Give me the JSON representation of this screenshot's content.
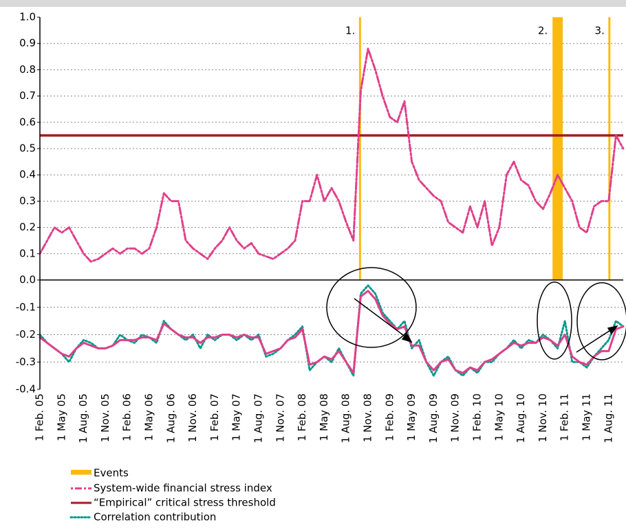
{
  "chart_data": [
    {
      "type": "line",
      "ylim": [
        0,
        1
      ],
      "yticks": [
        {
          "value": 0,
          "label": "0.0"
        },
        0.1,
        0.2,
        0.3,
        0.4,
        0.5,
        0.6,
        0.7,
        0.8,
        0.9,
        {
          "value": 1,
          "label": "1.0"
        }
      ],
      "grid": true,
      "events": {
        "name": "Events",
        "color": "#fdb913",
        "items": [
          {
            "label": "1.",
            "start": 43.9,
            "end": 43.9
          },
          {
            "label": "2.",
            "start": 70.3,
            "end": 71.7
          },
          {
            "label": "3.",
            "start": 78.1,
            "end": 78.1
          }
        ]
      },
      "threshold": {
        "name": "“Empirical” critical stress threshold",
        "value": 0.55,
        "color": "#a31d1d"
      },
      "series": [
        {
          "name": "System-wide financial stress index",
          "color": "#e0408a",
          "values": [
            0.1,
            0.15,
            0.2,
            0.18,
            0.2,
            0.15,
            0.1,
            0.07,
            0.08,
            0.1,
            0.12,
            0.1,
            0.12,
            0.12,
            0.1,
            0.12,
            0.2,
            0.33,
            0.3,
            0.3,
            0.15,
            0.12,
            0.1,
            0.08,
            0.12,
            0.15,
            0.2,
            0.15,
            0.12,
            0.14,
            0.1,
            0.09,
            0.08,
            0.1,
            0.12,
            0.15,
            0.3,
            0.3,
            0.4,
            0.3,
            0.35,
            0.3,
            0.22,
            0.15,
            0.72,
            0.88,
            0.8,
            0.7,
            0.62,
            0.6,
            0.68,
            0.45,
            0.38,
            0.35,
            0.32,
            0.3,
            0.22,
            0.2,
            0.18,
            0.28,
            0.2,
            0.3,
            0.13,
            0.2,
            0.4,
            0.45,
            0.38,
            0.36,
            0.3,
            0.27,
            0.33,
            0.4,
            0.35,
            0.3,
            0.2,
            0.18,
            0.28,
            0.3,
            0.3,
            0.55,
            0.5
          ]
        }
      ]
    },
    {
      "type": "line",
      "ylim": [
        -0.4,
        0
      ],
      "yticks": [
        -0.4,
        -0.3,
        -0.2,
        -0.1
      ],
      "grid": true,
      "categories": [
        "1 Feb. 05",
        null,
        null,
        "1 May 05",
        null,
        null,
        "1 Aug. 05",
        null,
        null,
        "1 Nov. 05",
        null,
        null,
        "1 Feb. 06",
        null,
        null,
        "1 May 06",
        null,
        null,
        "1 Aug. 06",
        null,
        null,
        "1 Nov. 06",
        null,
        null,
        "1 Feb. 07",
        null,
        null,
        "1 May 07",
        null,
        null,
        "1 Aug. 07",
        null,
        null,
        "1 Nov. 07",
        null,
        null,
        "1 Feb. 08",
        null,
        null,
        "1 May 08",
        null,
        null,
        "1 Aug. 08",
        null,
        null,
        "1 Nov. 08",
        null,
        null,
        "1 Feb. 09",
        null,
        null,
        "1 May 09",
        null,
        null,
        "1 Aug. 09",
        null,
        null,
        "1 Nov. 09",
        null,
        null,
        "1 Feb. 10",
        null,
        null,
        "1 May 10",
        null,
        null,
        "1 Aug. 10",
        null,
        null,
        "1 Nov. 10",
        null,
        null,
        "1 Feb. 11",
        null,
        null,
        "1 May 11",
        null,
        null,
        "1 Aug. 11",
        null,
        null
      ],
      "series": [
        {
          "name": "Correlation contribution",
          "color": "#00998a",
          "style": "dotted",
          "values": [
            -0.2,
            -0.23,
            -0.25,
            -0.27,
            -0.3,
            -0.25,
            -0.22,
            -0.23,
            -0.25,
            -0.25,
            -0.24,
            -0.2,
            -0.22,
            -0.23,
            -0.2,
            -0.21,
            -0.23,
            -0.15,
            -0.18,
            -0.2,
            -0.22,
            -0.2,
            -0.25,
            -0.2,
            -0.22,
            -0.2,
            -0.2,
            -0.22,
            -0.2,
            -0.22,
            -0.2,
            -0.28,
            -0.27,
            -0.25,
            -0.22,
            -0.2,
            -0.17,
            -0.33,
            -0.3,
            -0.28,
            -0.3,
            -0.25,
            -0.3,
            -0.35,
            -0.05,
            -0.02,
            -0.05,
            -0.12,
            -0.15,
            -0.18,
            -0.15,
            -0.25,
            -0.22,
            -0.3,
            -0.35,
            -0.3,
            -0.28,
            -0.33,
            -0.35,
            -0.32,
            -0.34,
            -0.3,
            -0.3,
            -0.27,
            -0.25,
            -0.22,
            -0.25,
            -0.22,
            -0.23,
            -0.2,
            -0.22,
            -0.25,
            -0.15,
            -0.3,
            -0.3,
            -0.32,
            -0.28,
            -0.25,
            -0.22,
            -0.15,
            -0.17
          ]
        },
        {
          "color": "#e0408a",
          "style": "solid",
          "values": [
            -0.21,
            -0.23,
            -0.25,
            -0.27,
            -0.28,
            -0.25,
            -0.23,
            -0.24,
            -0.25,
            -0.25,
            -0.24,
            -0.22,
            -0.22,
            -0.22,
            -0.21,
            -0.21,
            -0.22,
            -0.16,
            -0.18,
            -0.2,
            -0.21,
            -0.21,
            -0.23,
            -0.21,
            -0.21,
            -0.2,
            -0.2,
            -0.21,
            -0.2,
            -0.21,
            -0.21,
            -0.27,
            -0.26,
            -0.25,
            -0.22,
            -0.21,
            -0.18,
            -0.31,
            -0.3,
            -0.28,
            -0.29,
            -0.26,
            -0.3,
            -0.34,
            -0.06,
            -0.04,
            -0.07,
            -0.13,
            -0.16,
            -0.18,
            -0.17,
            -0.24,
            -0.24,
            -0.3,
            -0.33,
            -0.3,
            -0.29,
            -0.33,
            -0.34,
            -0.32,
            -0.33,
            -0.3,
            -0.29,
            -0.27,
            -0.25,
            -0.23,
            -0.24,
            -0.23,
            -0.23,
            -0.21,
            -0.22,
            -0.24,
            -0.2,
            -0.28,
            -0.3,
            -0.31,
            -0.28,
            -0.26,
            -0.26,
            -0.18,
            -0.17
          ]
        }
      ]
    }
  ]
}
